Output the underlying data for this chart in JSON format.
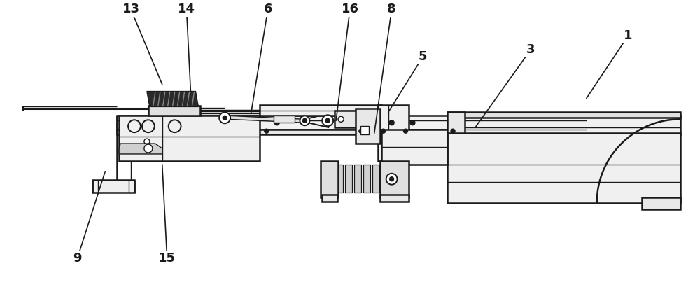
{
  "bg": "#ffffff",
  "lc": "#1a1a1a",
  "fig_w": 10.0,
  "fig_h": 4.3,
  "dpi": 100,
  "label_items": [
    [
      "13",
      185,
      418,
      230,
      310
    ],
    [
      "14",
      265,
      418,
      272,
      278
    ],
    [
      "6",
      382,
      418,
      358,
      270
    ],
    [
      "16",
      500,
      418,
      480,
      258
    ],
    [
      "8",
      560,
      418,
      535,
      240
    ],
    [
      "5",
      605,
      350,
      555,
      270
    ],
    [
      "3",
      760,
      360,
      680,
      248
    ],
    [
      "1",
      900,
      380,
      840,
      290
    ],
    [
      "9",
      108,
      60,
      148,
      185
    ],
    [
      "15",
      237,
      60,
      230,
      195
    ]
  ]
}
